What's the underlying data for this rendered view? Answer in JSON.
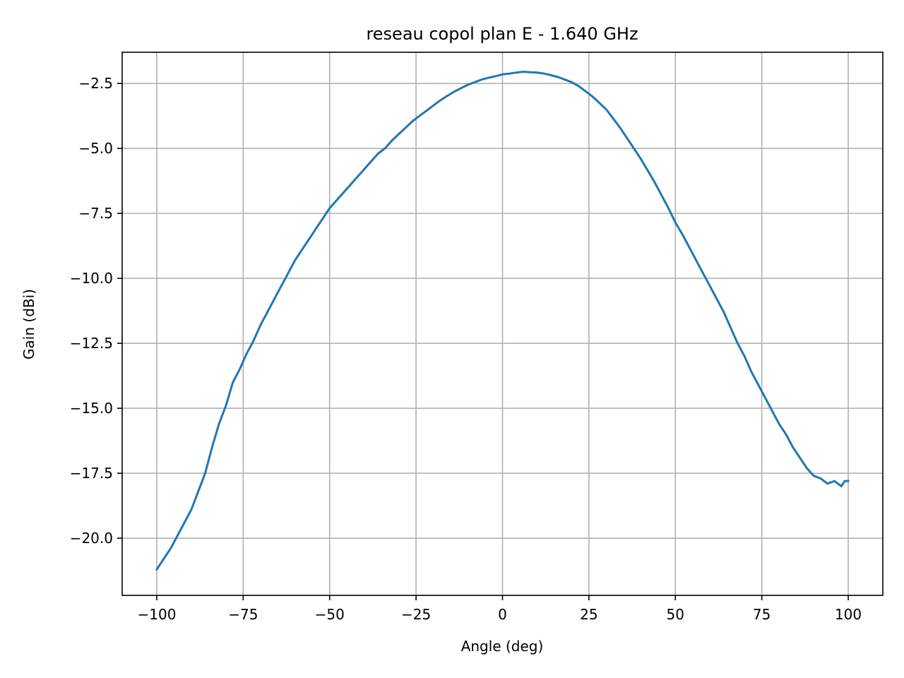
{
  "chart_data": {
    "type": "line",
    "title": "reseau copol plan E - 1.640 GHz",
    "xlabel": "Angle (deg)",
    "ylabel": "Gain (dBi)",
    "xlim": [
      -110,
      110
    ],
    "ylim": [
      -22.2,
      -1.3
    ],
    "xticks": [
      -100,
      -75,
      -50,
      -25,
      0,
      25,
      50,
      75,
      100
    ],
    "xtick_labels": [
      "−100",
      "−75",
      "−50",
      "−25",
      "0",
      "25",
      "50",
      "75",
      "100"
    ],
    "yticks": [
      -2.5,
      -5.0,
      -7.5,
      -10.0,
      -12.5,
      -15.0,
      -17.5,
      -20.0
    ],
    "ytick_labels": [
      "−2.5",
      "−5.0",
      "−7.5",
      "−10.0",
      "−12.5",
      "−15.0",
      "−17.5",
      "−20.0"
    ],
    "grid": true,
    "series": [
      {
        "color": "#1f77b4",
        "x": [
          -100,
          -98,
          -96,
          -94,
          -92,
          -90,
          -88,
          -86,
          -84,
          -82,
          -80,
          -78,
          -76,
          -74,
          -72,
          -70,
          -68,
          -66,
          -64,
          -62,
          -60,
          -58,
          -56,
          -54,
          -52,
          -50,
          -48,
          -46,
          -44,
          -42,
          -40,
          -38,
          -36,
          -34,
          -32,
          -30,
          -28,
          -26,
          -24,
          -22,
          -20,
          -18,
          -16,
          -14,
          -12,
          -10,
          -8,
          -6,
          -4,
          -2,
          0,
          2,
          4,
          6,
          8,
          10,
          12,
          14,
          16,
          18,
          20,
          22,
          24,
          26,
          28,
          30,
          32,
          34,
          36,
          38,
          40,
          42,
          44,
          46,
          48,
          50,
          52,
          54,
          56,
          58,
          60,
          62,
          64,
          66,
          68,
          70,
          72,
          74,
          76,
          78,
          80,
          82,
          84,
          86,
          88,
          90,
          92,
          94,
          96,
          98,
          99,
          100
        ],
        "y": [
          -21.2,
          -20.8,
          -20.4,
          -19.9,
          -19.4,
          -18.9,
          -18.2,
          -17.5,
          -16.5,
          -15.6,
          -14.9,
          -14.0,
          -13.5,
          -12.9,
          -12.4,
          -11.8,
          -11.3,
          -10.8,
          -10.3,
          -9.8,
          -9.3,
          -8.9,
          -8.5,
          -8.1,
          -7.7,
          -7.3,
          -7.0,
          -6.7,
          -6.4,
          -6.1,
          -5.8,
          -5.5,
          -5.2,
          -5.0,
          -4.7,
          -4.45,
          -4.2,
          -3.95,
          -3.75,
          -3.55,
          -3.35,
          -3.15,
          -2.98,
          -2.82,
          -2.68,
          -2.55,
          -2.45,
          -2.35,
          -2.28,
          -2.22,
          -2.15,
          -2.12,
          -2.08,
          -2.05,
          -2.07,
          -2.08,
          -2.12,
          -2.18,
          -2.25,
          -2.35,
          -2.45,
          -2.6,
          -2.8,
          -3.0,
          -3.25,
          -3.5,
          -3.85,
          -4.2,
          -4.6,
          -5.0,
          -5.4,
          -5.85,
          -6.3,
          -6.8,
          -7.3,
          -7.85,
          -8.3,
          -8.8,
          -9.3,
          -9.8,
          -10.3,
          -10.8,
          -11.3,
          -11.9,
          -12.5,
          -13.0,
          -13.6,
          -14.1,
          -14.6,
          -15.1,
          -15.6,
          -16.0,
          -16.5,
          -16.9,
          -17.3,
          -17.6,
          -17.7,
          -17.9,
          -17.8,
          -18.0,
          -17.8,
          -17.8
        ]
      }
    ]
  }
}
